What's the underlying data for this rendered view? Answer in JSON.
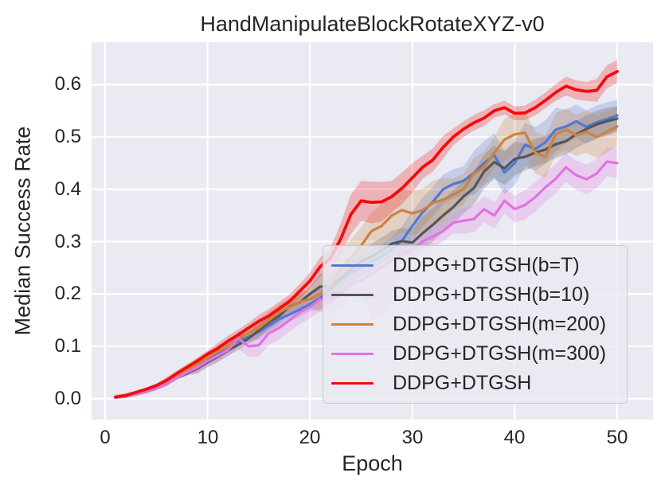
{
  "figure": {
    "title": "HandManipulateBlockRotateXYZ-v0",
    "xlabel": "Epoch",
    "ylabel": "Median Success Rate"
  },
  "colors": {
    "plot_background": "#eaeaf2",
    "grid": "#ffffff",
    "text": "#262626",
    "legend_background": "rgba(234,234,242,0.82)",
    "legend_border": "#c9c9d2"
  },
  "chart_data": {
    "type": "line",
    "title": "HandManipulateBlockRotateXYZ-v0",
    "xlabel": "Epoch",
    "ylabel": "Median Success Rate",
    "grid": true,
    "legend_position": "lower-right-inside",
    "xlim": [
      -1.32,
      53.5
    ],
    "ylim": [
      -0.04,
      0.681
    ],
    "xticks": [
      "0",
      "10",
      "20",
      "30",
      "40",
      "50"
    ],
    "xtick_values": [
      0,
      10,
      20,
      30,
      40,
      50
    ],
    "yticks": [
      "0.0",
      "0.1",
      "0.2",
      "0.3",
      "0.4",
      "0.5",
      "0.6"
    ],
    "ytick_values": [
      0.0,
      0.1,
      0.2,
      0.3,
      0.4,
      0.5,
      0.6
    ],
    "x": [
      1,
      2,
      3,
      4,
      5,
      6,
      7,
      8,
      9,
      10,
      11,
      12,
      13,
      14,
      15,
      16,
      17,
      18,
      19,
      20,
      21,
      22,
      23,
      24,
      25,
      26,
      27,
      28,
      29,
      30,
      31,
      32,
      33,
      34,
      35,
      36,
      37,
      38,
      39,
      40,
      41,
      42,
      43,
      44,
      45,
      46,
      47,
      48,
      49,
      50
    ],
    "series": [
      {
        "name": "DDPG+DTGSH(b=T)",
        "color": "#5278d2",
        "values": [
          0.003,
          0.005,
          0.01,
          0.016,
          0.022,
          0.03,
          0.042,
          0.052,
          0.062,
          0.075,
          0.086,
          0.1,
          0.11,
          0.118,
          0.127,
          0.14,
          0.152,
          0.161,
          0.17,
          0.181,
          0.192,
          0.21,
          0.226,
          0.24,
          0.251,
          0.262,
          0.272,
          0.286,
          0.302,
          0.33,
          0.356,
          0.376,
          0.4,
          0.41,
          0.416,
          0.431,
          0.45,
          0.465,
          0.432,
          0.45,
          0.485,
          0.477,
          0.49,
          0.514,
          0.52,
          0.53,
          0.519,
          0.528,
          0.534,
          0.541
        ],
        "lower": [
          0.0,
          0.001,
          0.006,
          0.012,
          0.018,
          0.026,
          0.038,
          0.048,
          0.052,
          0.065,
          0.076,
          0.09,
          0.1,
          0.108,
          0.113,
          0.126,
          0.138,
          0.147,
          0.156,
          0.167,
          0.17,
          0.188,
          0.204,
          0.218,
          0.229,
          0.24,
          0.25,
          0.264,
          0.274,
          0.302,
          0.328,
          0.348,
          0.372,
          0.382,
          0.388,
          0.389,
          0.408,
          0.423,
          0.39,
          0.408,
          0.443,
          0.435,
          0.448,
          0.472,
          0.488,
          0.498,
          0.487,
          0.496,
          0.502,
          0.511
        ],
        "upper": [
          0.007,
          0.009,
          0.014,
          0.02,
          0.026,
          0.034,
          0.046,
          0.056,
          0.072,
          0.085,
          0.096,
          0.11,
          0.12,
          0.128,
          0.141,
          0.154,
          0.166,
          0.175,
          0.184,
          0.195,
          0.214,
          0.232,
          0.248,
          0.262,
          0.273,
          0.284,
          0.294,
          0.308,
          0.33,
          0.358,
          0.384,
          0.404,
          0.428,
          0.438,
          0.444,
          0.473,
          0.492,
          0.507,
          0.474,
          0.492,
          0.527,
          0.519,
          0.532,
          0.556,
          0.552,
          0.562,
          0.551,
          0.56,
          0.566,
          0.571
        ]
      },
      {
        "name": "DDPG+DTGSH(b=10)",
        "color": "#55565c",
        "values": [
          0.002,
          0.005,
          0.009,
          0.014,
          0.02,
          0.028,
          0.04,
          0.048,
          0.058,
          0.07,
          0.08,
          0.092,
          0.103,
          0.115,
          0.13,
          0.146,
          0.158,
          0.176,
          0.184,
          0.2,
          0.214,
          0.214,
          0.23,
          0.246,
          0.262,
          0.271,
          0.283,
          0.296,
          0.301,
          0.298,
          0.316,
          0.332,
          0.35,
          0.366,
          0.386,
          0.402,
          0.434,
          0.452,
          0.44,
          0.458,
          0.462,
          0.47,
          0.476,
          0.486,
          0.492,
          0.505,
          0.515,
          0.524,
          0.53,
          0.535
        ],
        "lower": [
          0.0,
          0.001,
          0.005,
          0.01,
          0.016,
          0.024,
          0.036,
          0.044,
          0.048,
          0.06,
          0.07,
          0.082,
          0.093,
          0.105,
          0.116,
          0.132,
          0.144,
          0.162,
          0.17,
          0.186,
          0.189,
          0.189,
          0.205,
          0.221,
          0.237,
          0.246,
          0.258,
          0.271,
          0.276,
          0.273,
          0.284,
          0.3,
          0.318,
          0.334,
          0.354,
          0.37,
          0.402,
          0.42,
          0.408,
          0.426,
          0.436,
          0.444,
          0.45,
          0.46,
          0.466,
          0.479,
          0.489,
          0.498,
          0.504,
          0.511
        ],
        "upper": [
          0.006,
          0.009,
          0.013,
          0.018,
          0.024,
          0.032,
          0.044,
          0.052,
          0.068,
          0.08,
          0.09,
          0.102,
          0.113,
          0.125,
          0.144,
          0.16,
          0.172,
          0.19,
          0.198,
          0.214,
          0.239,
          0.239,
          0.255,
          0.271,
          0.287,
          0.296,
          0.308,
          0.321,
          0.326,
          0.323,
          0.348,
          0.364,
          0.382,
          0.398,
          0.418,
          0.434,
          0.466,
          0.484,
          0.472,
          0.49,
          0.488,
          0.496,
          0.502,
          0.512,
          0.518,
          0.531,
          0.541,
          0.55,
          0.556,
          0.559
        ]
      },
      {
        "name": "DDPG+DTGSH(m=200)",
        "color": "#cd823c",
        "values": [
          0.003,
          0.006,
          0.01,
          0.015,
          0.022,
          0.03,
          0.043,
          0.055,
          0.065,
          0.078,
          0.09,
          0.1,
          0.115,
          0.125,
          0.135,
          0.15,
          0.165,
          0.175,
          0.185,
          0.19,
          0.2,
          0.216,
          0.245,
          0.27,
          0.292,
          0.32,
          0.33,
          0.35,
          0.36,
          0.354,
          0.36,
          0.374,
          0.38,
          0.39,
          0.4,
          0.43,
          0.442,
          0.47,
          0.495,
          0.505,
          0.508,
          0.47,
          0.462,
          0.505,
          0.514,
          0.503,
          0.51,
          0.5,
          0.51,
          0.52
        ],
        "lower": [
          0.0,
          0.001,
          0.005,
          0.01,
          0.017,
          0.025,
          0.038,
          0.05,
          0.053,
          0.066,
          0.078,
          0.088,
          0.103,
          0.113,
          0.119,
          0.134,
          0.149,
          0.159,
          0.169,
          0.174,
          0.165,
          0.181,
          0.21,
          0.235,
          0.257,
          0.285,
          0.288,
          0.308,
          0.318,
          0.312,
          0.318,
          0.332,
          0.338,
          0.36,
          0.37,
          0.4,
          0.412,
          0.44,
          0.455,
          0.465,
          0.468,
          0.43,
          0.422,
          0.465,
          0.474,
          0.463,
          0.47,
          0.46,
          0.47,
          0.482
        ],
        "upper": [
          0.008,
          0.011,
          0.015,
          0.02,
          0.027,
          0.035,
          0.048,
          0.06,
          0.077,
          0.09,
          0.102,
          0.112,
          0.127,
          0.137,
          0.151,
          0.166,
          0.181,
          0.191,
          0.201,
          0.206,
          0.235,
          0.251,
          0.28,
          0.305,
          0.327,
          0.355,
          0.372,
          0.392,
          0.402,
          0.396,
          0.402,
          0.416,
          0.422,
          0.42,
          0.43,
          0.46,
          0.472,
          0.5,
          0.535,
          0.545,
          0.548,
          0.51,
          0.502,
          0.545,
          0.554,
          0.543,
          0.55,
          0.54,
          0.55,
          0.558
        ]
      },
      {
        "name": "DDPG+DTGSH(m=300)",
        "color": "#e173e1",
        "values": [
          0.002,
          0.005,
          0.009,
          0.014,
          0.02,
          0.028,
          0.04,
          0.05,
          0.06,
          0.072,
          0.082,
          0.093,
          0.115,
          0.1,
          0.102,
          0.125,
          0.135,
          0.15,
          0.165,
          0.175,
          0.19,
          0.185,
          0.2,
          0.218,
          0.225,
          0.237,
          0.25,
          0.265,
          0.275,
          0.285,
          0.3,
          0.31,
          0.32,
          0.336,
          0.34,
          0.343,
          0.362,
          0.35,
          0.378,
          0.362,
          0.37,
          0.385,
          0.404,
          0.42,
          0.442,
          0.427,
          0.419,
          0.43,
          0.453,
          0.45
        ],
        "lower": [
          0.0,
          0.001,
          0.005,
          0.01,
          0.016,
          0.024,
          0.036,
          0.046,
          0.048,
          0.06,
          0.07,
          0.081,
          0.095,
          0.08,
          0.08,
          0.103,
          0.113,
          0.128,
          0.143,
          0.153,
          0.168,
          0.16,
          0.178,
          0.198,
          0.205,
          0.15,
          0.158,
          0.185,
          0.252,
          0.263,
          0.28,
          0.29,
          0.3,
          0.316,
          0.315,
          0.318,
          0.337,
          0.325,
          0.353,
          0.337,
          0.342,
          0.357,
          0.376,
          0.392,
          0.414,
          0.399,
          0.391,
          0.402,
          0.425,
          0.422
        ],
        "upper": [
          0.006,
          0.009,
          0.013,
          0.018,
          0.024,
          0.032,
          0.044,
          0.054,
          0.072,
          0.084,
          0.094,
          0.105,
          0.127,
          0.112,
          0.124,
          0.147,
          0.157,
          0.172,
          0.187,
          0.197,
          0.212,
          0.207,
          0.218,
          0.236,
          0.243,
          0.252,
          0.265,
          0.28,
          0.295,
          0.305,
          0.32,
          0.33,
          0.34,
          0.356,
          0.365,
          0.368,
          0.387,
          0.375,
          0.403,
          0.387,
          0.398,
          0.413,
          0.432,
          0.448,
          0.47,
          0.455,
          0.447,
          0.458,
          0.481,
          0.478
        ]
      },
      {
        "name": "DDPG+DTGSH",
        "color": "#f40b0b",
        "values": [
          0.003,
          0.006,
          0.012,
          0.018,
          0.025,
          0.035,
          0.048,
          0.06,
          0.072,
          0.085,
          0.096,
          0.11,
          0.122,
          0.135,
          0.148,
          0.158,
          0.172,
          0.186,
          0.205,
          0.225,
          0.252,
          0.268,
          0.305,
          0.352,
          0.378,
          0.375,
          0.376,
          0.386,
          0.402,
          0.422,
          0.442,
          0.456,
          0.48,
          0.5,
          0.515,
          0.527,
          0.536,
          0.55,
          0.556,
          0.545,
          0.546,
          0.556,
          0.57,
          0.585,
          0.597,
          0.59,
          0.587,
          0.589,
          0.615,
          0.625
        ],
        "lower": [
          0.001,
          0.004,
          0.009,
          0.015,
          0.021,
          0.029,
          0.042,
          0.054,
          0.066,
          0.078,
          0.086,
          0.1,
          0.112,
          0.125,
          0.136,
          0.145,
          0.159,
          0.173,
          0.191,
          0.209,
          0.234,
          0.248,
          0.275,
          0.314,
          0.34,
          0.335,
          0.338,
          0.356,
          0.372,
          0.394,
          0.42,
          0.434,
          0.458,
          0.484,
          0.5,
          0.512,
          0.521,
          0.537,
          0.543,
          0.532,
          0.532,
          0.541,
          0.555,
          0.569,
          0.579,
          0.572,
          0.569,
          0.567,
          0.593,
          0.603
        ],
        "upper": [
          0.005,
          0.008,
          0.015,
          0.021,
          0.029,
          0.041,
          0.054,
          0.066,
          0.078,
          0.092,
          0.106,
          0.12,
          0.132,
          0.145,
          0.16,
          0.171,
          0.185,
          0.199,
          0.219,
          0.241,
          0.27,
          0.288,
          0.335,
          0.39,
          0.416,
          0.415,
          0.414,
          0.416,
          0.432,
          0.45,
          0.464,
          0.478,
          0.502,
          0.516,
          0.53,
          0.542,
          0.551,
          0.563,
          0.569,
          0.558,
          0.56,
          0.571,
          0.585,
          0.601,
          0.615,
          0.608,
          0.605,
          0.611,
          0.637,
          0.647
        ]
      }
    ]
  }
}
